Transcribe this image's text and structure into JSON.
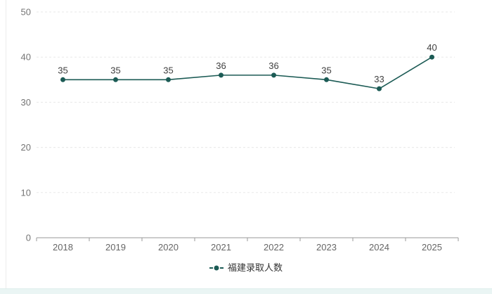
{
  "chart_data": {
    "type": "line",
    "title": "",
    "categories": [
      "2018",
      "2019",
      "2020",
      "2021",
      "2022",
      "2023",
      "2024",
      "2025"
    ],
    "series": [
      {
        "name": "福建录取人数",
        "values": [
          35,
          35,
          35,
          36,
          36,
          35,
          33,
          40
        ]
      }
    ],
    "xlabel": "",
    "ylabel": "",
    "ylim": [
      0,
      50
    ],
    "y_ticks": [
      0,
      10,
      20,
      30,
      40,
      50
    ],
    "grid": "horizontal-dashed",
    "legend_position": "bottom-center",
    "data_labels": true,
    "colors": {
      "line": "#1c5b55",
      "marker": "#1c5b55",
      "data_label": "#404040",
      "axis_text": "#757575",
      "axis_line": "#9a9a9a",
      "gridline": "#e8e8e8",
      "background": "#ffffff",
      "bottom_strip": "#eaf5f4"
    }
  },
  "legend": {
    "label": "福建录取人数"
  }
}
